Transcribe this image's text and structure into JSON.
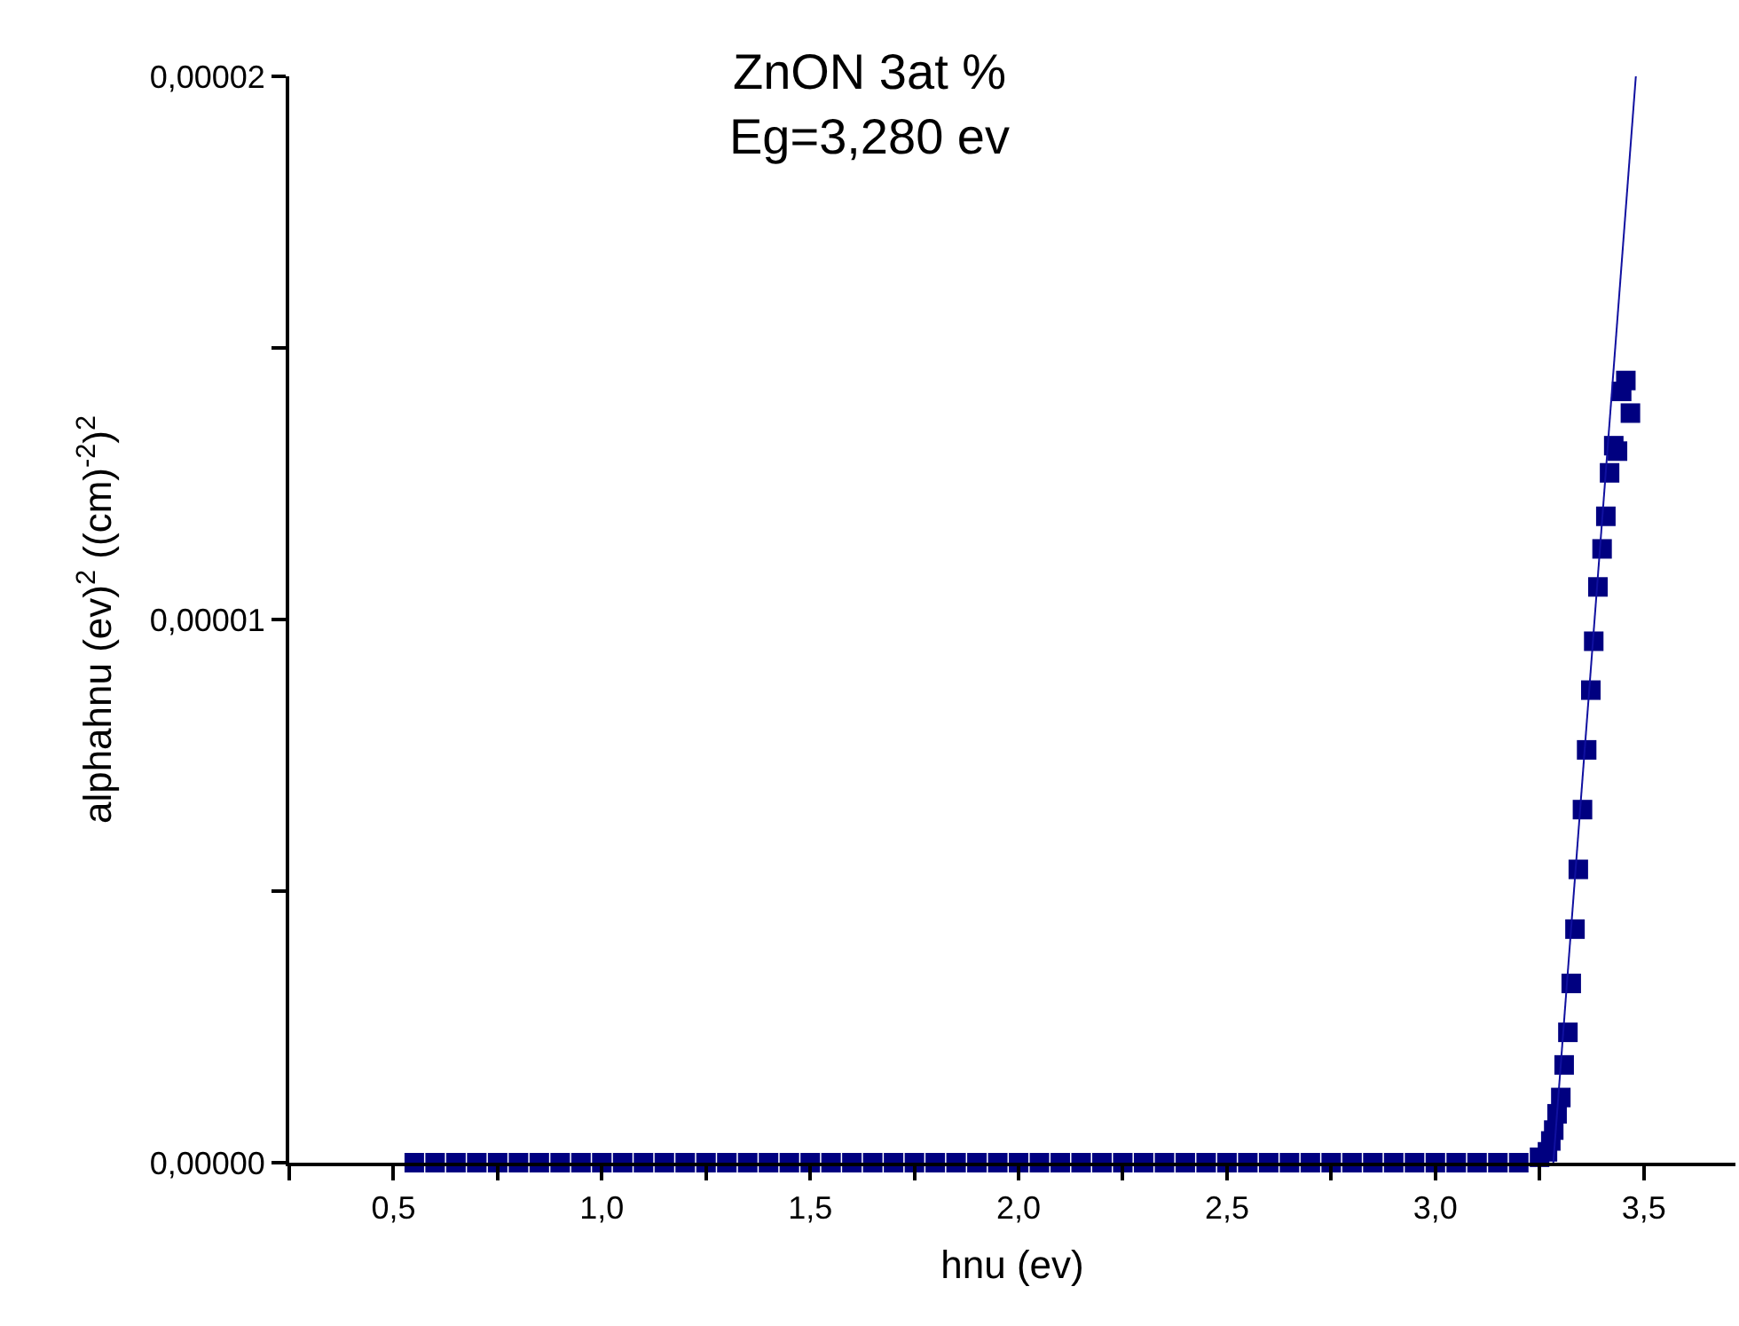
{
  "chart_data": {
    "type": "scatter",
    "title": "ZnON 3at %\nEg=3,280 ev",
    "xlabel": "hnu (ev)",
    "ylabel": "alphahnu (ev)$^{2}$ ((cm)$^{-2}$)$^{2}$",
    "xlim": [
      0.25,
      3.72
    ],
    "ylim": [
      0,
      2e-05
    ],
    "xticks": [
      {
        "value": 0.25,
        "label": null
      },
      {
        "value": 0.5,
        "label": "0,5"
      },
      {
        "value": 0.75,
        "label": null
      },
      {
        "value": 1.0,
        "label": "1,0"
      },
      {
        "value": 1.25,
        "label": null
      },
      {
        "value": 1.5,
        "label": "1,5"
      },
      {
        "value": 1.75,
        "label": null
      },
      {
        "value": 2.0,
        "label": "2,0"
      },
      {
        "value": 2.25,
        "label": null
      },
      {
        "value": 2.5,
        "label": "2,5"
      },
      {
        "value": 2.75,
        "label": null
      },
      {
        "value": 3.0,
        "label": "3,0"
      },
      {
        "value": 3.25,
        "label": null
      },
      {
        "value": 3.5,
        "label": "3,5"
      }
    ],
    "yticks": [
      {
        "value": 0,
        "label": "0,00000"
      },
      {
        "value": 5e-06,
        "label": null
      },
      {
        "value": 1e-05,
        "label": "0,00001"
      },
      {
        "value": 1.5e-05,
        "label": null
      },
      {
        "value": 2e-05,
        "label": "0,00002"
      }
    ],
    "marker": "square",
    "series": [
      {
        "color": "#000080",
        "x": [
          0.55,
          0.6,
          0.65,
          0.7,
          0.75,
          0.8,
          0.85,
          0.9,
          0.95,
          1.0,
          1.05,
          1.1,
          1.15,
          1.2,
          1.25,
          1.3,
          1.35,
          1.4,
          1.45,
          1.5,
          1.55,
          1.6,
          1.65,
          1.7,
          1.75,
          1.8,
          1.85,
          1.9,
          1.95,
          2.0,
          2.05,
          2.1,
          2.15,
          2.2,
          2.25,
          2.3,
          2.35,
          2.4,
          2.45,
          2.5,
          2.55,
          2.6,
          2.65,
          2.7,
          2.75,
          2.8,
          2.85,
          2.9,
          2.95,
          3.0,
          3.05,
          3.1,
          3.15,
          3.2,
          3.25,
          3.269,
          3.277,
          3.284,
          3.292,
          3.301,
          3.309,
          3.318,
          3.326,
          3.335,
          3.343,
          3.353,
          3.363,
          3.373,
          3.38,
          3.39,
          3.4,
          3.409,
          3.418,
          3.428,
          3.437,
          3.447,
          3.457,
          3.468
        ],
        "values": [
          0,
          0,
          0,
          0,
          0,
          0,
          0,
          0,
          0,
          0,
          0,
          0,
          0,
          0,
          0,
          0,
          0,
          0,
          0,
          0,
          0,
          0,
          0,
          0,
          0,
          0,
          0,
          0,
          0,
          0,
          0,
          0,
          0,
          0,
          0,
          0,
          0,
          0,
          0,
          0,
          0,
          0,
          0,
          0,
          0,
          0,
          0,
          0,
          0,
          0,
          0,
          0,
          0,
          0,
          1e-07,
          2e-07,
          4e-07,
          6e-07,
          9e-07,
          1.2e-06,
          1.8e-06,
          2.4e-06,
          3.3e-06,
          4.3e-06,
          5.4e-06,
          6.5e-06,
          7.6e-06,
          8.7e-06,
          9.6e-06,
          1.06e-05,
          1.13e-05,
          1.19e-05,
          1.27e-05,
          1.32e-05,
          1.31e-05,
          1.42e-05,
          1.44e-05,
          1.38e-05
        ]
      },
      {
        "type": "line",
        "color": "#1010a0",
        "marker": "none",
        "x": [
          3.283,
          3.481
        ],
        "values": [
          0,
          2e-05
        ]
      }
    ]
  }
}
